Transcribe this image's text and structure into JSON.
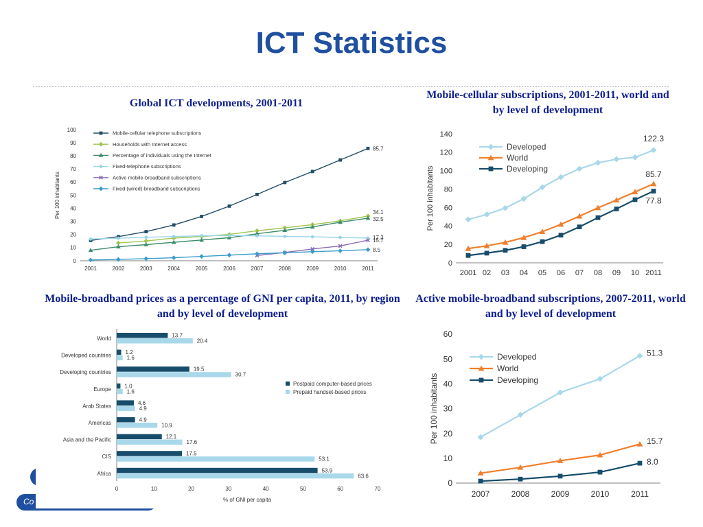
{
  "slide": {
    "title": "ICT Statistics",
    "footer_fragment": "Co"
  },
  "captions": {
    "c1": "Global ICT developments, 2001-2011",
    "c2": "Mobile-cellular subscriptions, 2001-2011, world and by level of development",
    "c3": "Mobile-broadband prices as a percentage of GNI per capita, 2011, by region and by level of development",
    "c4": "Active mobile-broadband subscriptions, 2007-2011, world and by level of development"
  },
  "colors": {
    "title": "#1f4fa0",
    "caption": "#0d1f8f",
    "developed": "#a8d8ea",
    "world": "#f07f2c",
    "developing": "#174d6b"
  },
  "chart_data": [
    {
      "type": "line",
      "ylabel": "Per 100 inhabitants",
      "ylim": [
        0,
        100
      ],
      "yticks": [
        0,
        10,
        20,
        30,
        40,
        50,
        60,
        70,
        80,
        90,
        100
      ],
      "x": [
        "2001",
        "2002",
        "2003",
        "2004",
        "2005",
        "2006",
        "2007",
        "2008",
        "2009",
        "2010",
        "2011"
      ],
      "legend": "top-left",
      "series": [
        {
          "name": "Mobile-cellular telephone subscriptions",
          "color": "#214e6a",
          "marker": "square",
          "values": [
            15.5,
            18.4,
            22.2,
            27.3,
            33.8,
            41.7,
            50.6,
            59.7,
            68.1,
            76.9,
            85.7
          ],
          "end_label": "85.7"
        },
        {
          "name": "Households with Internet access",
          "color": "#9fc44f",
          "marker": "diamond",
          "values": [
            null,
            13.6,
            15.1,
            17.3,
            18.5,
            20.1,
            22.9,
            25.1,
            27.6,
            30.4,
            34.1
          ],
          "end_label": "34.1"
        },
        {
          "name": "Percentage of individuals using the Internet",
          "color": "#3c8c6a",
          "marker": "triangle",
          "values": [
            8.0,
            10.7,
            12.3,
            14.1,
            15.8,
            17.6,
            20.6,
            23.2,
            25.8,
            29.4,
            32.5
          ],
          "end_label": "32.5"
        },
        {
          "name": "Fixed-telephone subscriptions",
          "color": "#9ad4ea",
          "marker": "circle",
          "values": [
            16.6,
            17.2,
            17.9,
            18.5,
            19.1,
            19.3,
            19.0,
            18.6,
            18.3,
            17.8,
            17.3
          ],
          "end_label": "17.3"
        },
        {
          "name": "Active mobile-broadband subscriptions",
          "color": "#8a6cb5",
          "marker": "cross",
          "values": [
            null,
            null,
            null,
            null,
            null,
            null,
            4.0,
            6.3,
            9.0,
            11.3,
            15.7
          ],
          "end_label": "15.7"
        },
        {
          "name": "Fixed (wired)-broadband subscriptions",
          "color": "#3a9dc7",
          "marker": "diamond",
          "values": [
            0.6,
            1.0,
            1.6,
            2.3,
            3.3,
            4.3,
            5.3,
            6.1,
            6.9,
            7.6,
            8.5
          ],
          "end_label": "8.5"
        }
      ]
    },
    {
      "type": "line",
      "ylabel": "Per 100 inhabitants",
      "ylim": [
        0,
        140
      ],
      "yticks": [
        0,
        20,
        40,
        60,
        80,
        100,
        120,
        140
      ],
      "x": [
        "2001",
        "02",
        "03",
        "04",
        "05",
        "06",
        "07",
        "08",
        "09",
        "10",
        "2011"
      ],
      "legend": "top-left",
      "series": [
        {
          "name": "Developed",
          "color": "#a8d8ea",
          "marker": "diamond",
          "values": [
            47.0,
            52.5,
            59.5,
            69.5,
            82.0,
            93.0,
            102.0,
            108.5,
            112.5,
            114.5,
            122.3
          ],
          "end_label": "122.3"
        },
        {
          "name": "World",
          "color": "#f07f2c",
          "marker": "triangle",
          "values": [
            15.5,
            18.4,
            22.2,
            27.3,
            33.8,
            41.7,
            50.6,
            59.7,
            68.1,
            76.9,
            85.7
          ],
          "end_label": "85.7"
        },
        {
          "name": "Developing",
          "color": "#174d6b",
          "marker": "square",
          "values": [
            8.0,
            10.5,
            13.5,
            17.5,
            23.0,
            30.0,
            39.0,
            49.0,
            58.5,
            68.5,
            77.8
          ],
          "end_label": "77.8"
        }
      ]
    },
    {
      "type": "bar",
      "orientation": "horizontal",
      "categories": [
        "World",
        "Developed countries",
        "Developing countries",
        "Europe",
        "Arab States",
        "Americas",
        "Asia and the Pacific",
        "CIS",
        "Africa"
      ],
      "xlabel": "% of GNI per capita",
      "xlim": [
        0,
        70
      ],
      "xticks": [
        0,
        10,
        20,
        30,
        40,
        50,
        60,
        70
      ],
      "legend": "right",
      "series": [
        {
          "name": "Postpaid computer-based prices",
          "color": "#174d6b",
          "values": [
            13.7,
            1.2,
            19.5,
            1.0,
            4.6,
            4.9,
            12.1,
            17.5,
            53.9
          ],
          "labels": [
            "13.7",
            "1.2",
            "19.5",
            "1.0",
            "4.6",
            "4.9",
            "12.1",
            "17.5",
            "53.9"
          ]
        },
        {
          "name": "Prepaid handset-based prices",
          "color": "#a8d8ea",
          "values": [
            20.4,
            1.6,
            30.7,
            1.6,
            4.9,
            10.9,
            17.6,
            53.1,
            63.6
          ],
          "labels": [
            "20.4",
            "1.6",
            "30.7",
            "1.6",
            "4.9",
            "10.9",
            "17.6",
            "53.1",
            "63.6"
          ]
        }
      ]
    },
    {
      "type": "line",
      "ylabel": "Per 100 inhabitants",
      "ylim": [
        0,
        60
      ],
      "yticks": [
        0,
        10,
        20,
        30,
        40,
        50,
        60
      ],
      "x": [
        "2007",
        "2008",
        "2009",
        "2010",
        "2011"
      ],
      "legend": "top-left",
      "series": [
        {
          "name": "Developed",
          "color": "#a8d8ea",
          "marker": "diamond",
          "values": [
            18.5,
            27.5,
            36.5,
            42.0,
            51.3
          ],
          "end_label": "51.3"
        },
        {
          "name": "World",
          "color": "#f07f2c",
          "marker": "triangle",
          "values": [
            4.0,
            6.3,
            9.0,
            11.3,
            15.7
          ],
          "end_label": "15.7"
        },
        {
          "name": "Developing",
          "color": "#174d6b",
          "marker": "square",
          "values": [
            0.8,
            1.6,
            2.8,
            4.4,
            8.0
          ],
          "end_label": "8.0"
        }
      ]
    }
  ]
}
